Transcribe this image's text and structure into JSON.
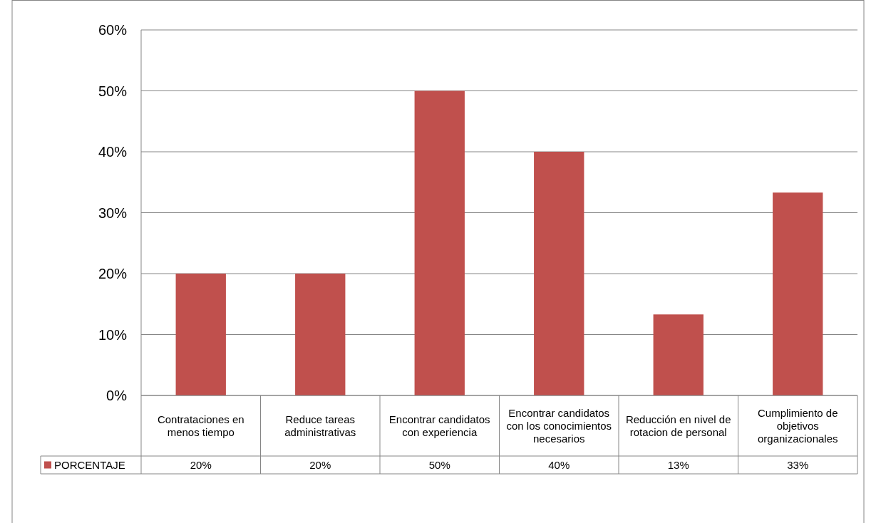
{
  "chart_data": {
    "type": "bar",
    "categories": [
      "Contrataciones en menos tiempo",
      "Reduce tareas administrativas",
      "Encontrar candidatos con experiencia",
      "Encontrar candidatos con los conocimientos necesarios",
      "Reducción en nivel de rotacion de personal",
      "Cumplimiento de objetivos organizacionales"
    ],
    "series": [
      {
        "name": "PORCENTAJE",
        "color": "#c0504d",
        "values": [
          20,
          20,
          50,
          40,
          13.3,
          33.3
        ],
        "value_labels": [
          "20%",
          "20%",
          "50%",
          "40%",
          "13%",
          "33%"
        ]
      }
    ],
    "ylim": [
      0,
      60
    ],
    "yticks": [
      {
        "value": 0,
        "label": "0%"
      },
      {
        "value": 10,
        "label": "10%"
      },
      {
        "value": 20,
        "label": "20%"
      },
      {
        "value": 30,
        "label": "30%"
      },
      {
        "value": 40,
        "label": "40%"
      },
      {
        "value": 50,
        "label": "50%"
      },
      {
        "value": 60,
        "label": "60%"
      }
    ],
    "grid": "y",
    "legend": "bottom left"
  }
}
